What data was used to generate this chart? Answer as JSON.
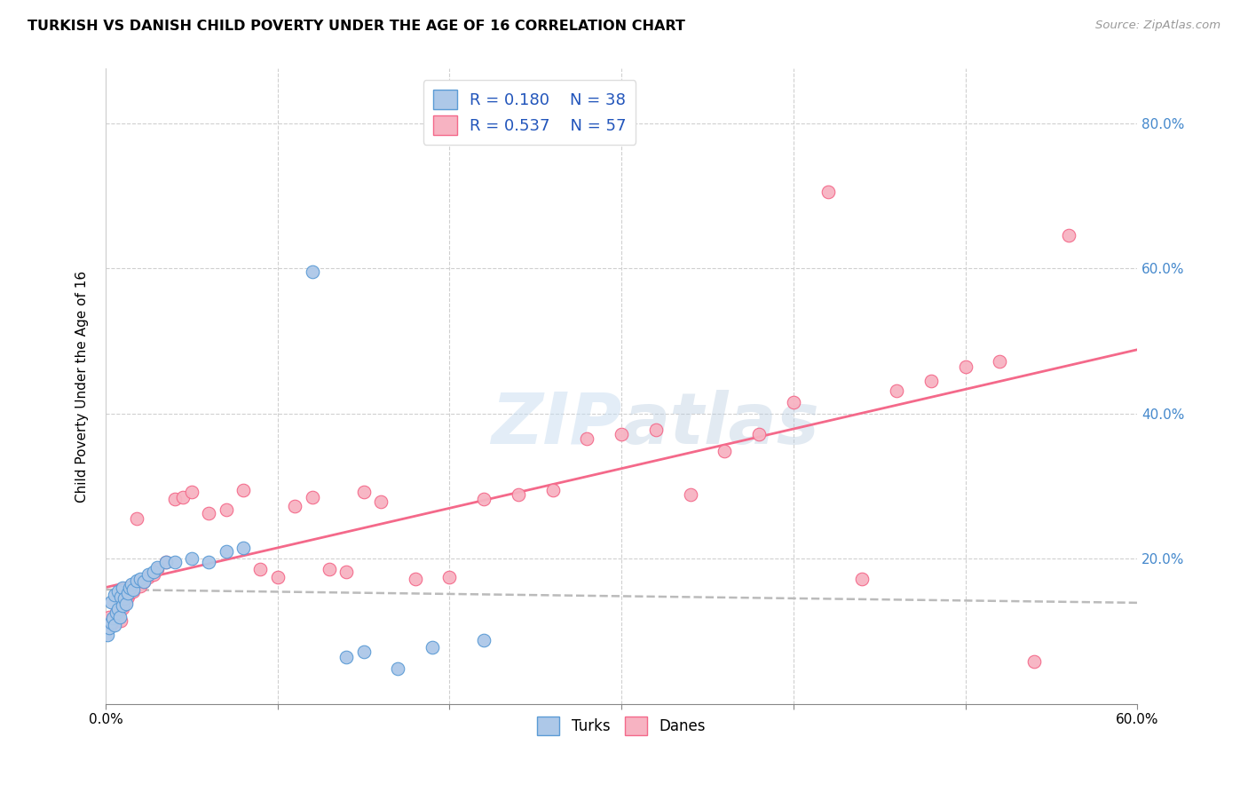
{
  "title": "TURKISH VS DANISH CHILD POVERTY UNDER THE AGE OF 16 CORRELATION CHART",
  "source": "Source: ZipAtlas.com",
  "ylabel": "Child Poverty Under the Age of 16",
  "xlim": [
    0.0,
    0.6
  ],
  "ylim": [
    0.0,
    0.875
  ],
  "xticks": [
    0.0,
    0.1,
    0.2,
    0.3,
    0.4,
    0.5,
    0.6
  ],
  "yticks": [
    0.0,
    0.2,
    0.4,
    0.6,
    0.8
  ],
  "xticklabels_show": [
    "0.0%",
    "60.0%"
  ],
  "yticklabels": [
    "20.0%",
    "40.0%",
    "60.0%",
    "80.0%"
  ],
  "turks_R": 0.18,
  "turks_N": 38,
  "danes_R": 0.537,
  "danes_N": 57,
  "turks_color": "#adc8e8",
  "danes_color": "#f7b3c2",
  "turks_edge_color": "#5b9bd5",
  "danes_edge_color": "#f4698a",
  "regression_line_color": "#bbbbbb",
  "danes_line_color": "#f4698a",
  "background_color": "#ffffff",
  "grid_color": "#d0d0d0",
  "turks_x": [
    0.001,
    0.002,
    0.003,
    0.003,
    0.004,
    0.005,
    0.005,
    0.006,
    0.007,
    0.007,
    0.008,
    0.009,
    0.01,
    0.01,
    0.011,
    0.012,
    0.013,
    0.014,
    0.015,
    0.016,
    0.018,
    0.02,
    0.022,
    0.025,
    0.028,
    0.03,
    0.035,
    0.04,
    0.05,
    0.06,
    0.07,
    0.08,
    0.12,
    0.14,
    0.15,
    0.17,
    0.19,
    0.22
  ],
  "turks_y": [
    0.095,
    0.105,
    0.112,
    0.14,
    0.118,
    0.108,
    0.15,
    0.125,
    0.13,
    0.155,
    0.12,
    0.148,
    0.135,
    0.16,
    0.145,
    0.138,
    0.152,
    0.16,
    0.165,
    0.158,
    0.17,
    0.172,
    0.168,
    0.178,
    0.182,
    0.188,
    0.195,
    0.195,
    0.2,
    0.195,
    0.21,
    0.215,
    0.595,
    0.065,
    0.072,
    0.048,
    0.078,
    0.088
  ],
  "danes_x": [
    0.001,
    0.002,
    0.003,
    0.004,
    0.005,
    0.006,
    0.007,
    0.008,
    0.009,
    0.01,
    0.011,
    0.012,
    0.013,
    0.014,
    0.015,
    0.016,
    0.018,
    0.02,
    0.022,
    0.025,
    0.028,
    0.03,
    0.035,
    0.04,
    0.045,
    0.05,
    0.06,
    0.07,
    0.08,
    0.09,
    0.1,
    0.11,
    0.12,
    0.13,
    0.14,
    0.15,
    0.16,
    0.18,
    0.2,
    0.22,
    0.24,
    0.26,
    0.28,
    0.3,
    0.32,
    0.34,
    0.36,
    0.38,
    0.4,
    0.42,
    0.44,
    0.46,
    0.48,
    0.5,
    0.52,
    0.54,
    0.56
  ],
  "danes_y": [
    0.115,
    0.12,
    0.108,
    0.112,
    0.118,
    0.125,
    0.122,
    0.128,
    0.115,
    0.132,
    0.138,
    0.142,
    0.148,
    0.152,
    0.158,
    0.155,
    0.255,
    0.162,
    0.168,
    0.175,
    0.178,
    0.185,
    0.195,
    0.282,
    0.285,
    0.292,
    0.262,
    0.268,
    0.295,
    0.185,
    0.175,
    0.272,
    0.285,
    0.185,
    0.182,
    0.292,
    0.278,
    0.172,
    0.175,
    0.282,
    0.288,
    0.295,
    0.365,
    0.372,
    0.378,
    0.288,
    0.348,
    0.372,
    0.415,
    0.705,
    0.172,
    0.432,
    0.445,
    0.465,
    0.472,
    0.058,
    0.645
  ]
}
